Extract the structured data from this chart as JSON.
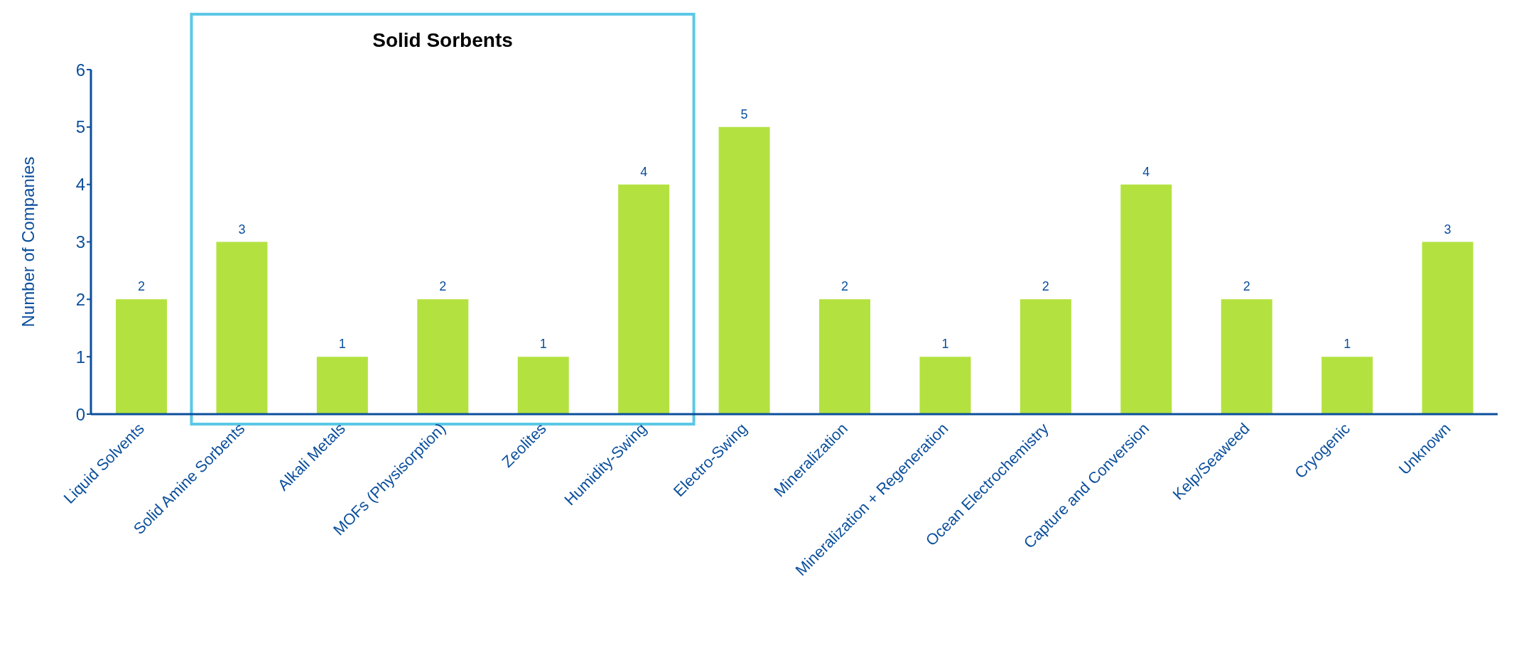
{
  "chart_data": {
    "type": "bar",
    "ylabel": "Number of Companies",
    "categories": [
      "Liquid Solvents",
      "Solid Amine Sorbents",
      "Alkali Metals",
      "MOFs (Physisorption)",
      "Zeolites",
      "Humidity-Swing",
      "Electro-Swing",
      "Mineralization",
      "Mineralization + Regeneration",
      "Ocean Electrochemistry",
      "Capture and Conversion",
      "Kelp/Seaweed",
      "Cryogenic",
      "Unknown"
    ],
    "values": [
      2,
      3,
      1,
      2,
      1,
      4,
      5,
      2,
      1,
      2,
      4,
      2,
      1,
      3
    ],
    "color": "#b3e240",
    "ylim": [
      0,
      6
    ],
    "yticks": [
      0,
      1,
      2,
      3,
      4,
      5,
      6
    ],
    "data_labels": true,
    "annotations": [
      "Solid Sorbents"
    ],
    "grid": false,
    "legend": false
  }
}
